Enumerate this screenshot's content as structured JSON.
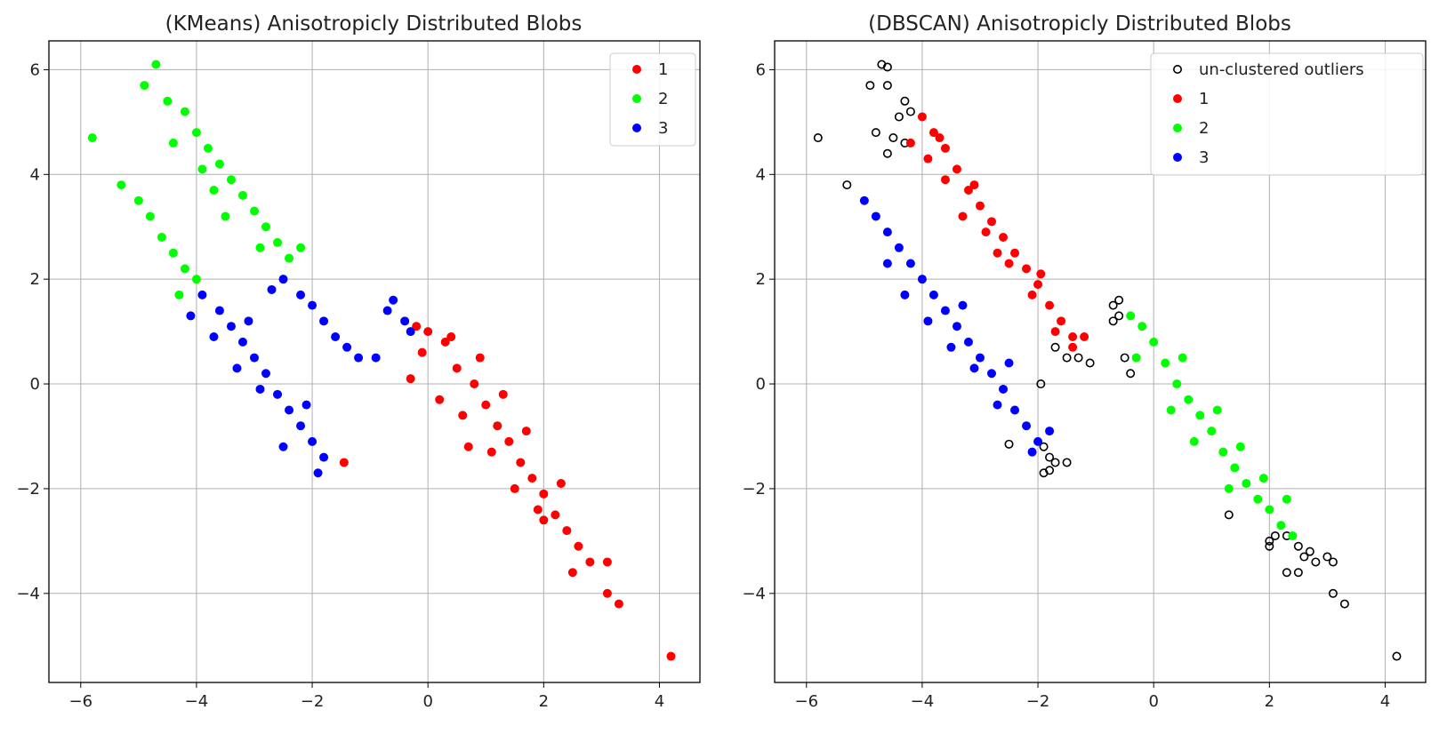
{
  "chart_data": [
    {
      "type": "scatter",
      "title": "(KMeans) Anisotropicly Distributed Blobs",
      "xlabel": "",
      "ylabel": "",
      "xlim": [
        -6.55,
        4.7
      ],
      "ylim": [
        -5.7,
        6.55
      ],
      "xticks": [
        -6,
        -4,
        -2,
        0,
        2,
        4
      ],
      "yticks": [
        -4,
        -2,
        0,
        2,
        4,
        6
      ],
      "grid": true,
      "legend_position": "top-right",
      "series": [
        {
          "name": "1",
          "color": "#ff0000",
          "marker": "filled",
          "points": [
            [
              0,
              1
            ],
            [
              -0.2,
              1.1
            ],
            [
              0.3,
              0.8
            ],
            [
              0.5,
              0.3
            ],
            [
              0.8,
              0
            ],
            [
              1,
              -0.4
            ],
            [
              1.2,
              -0.8
            ],
            [
              1.4,
              -1.1
            ],
            [
              1.6,
              -1.5
            ],
            [
              1.8,
              -1.8
            ],
            [
              2,
              -2.1
            ],
            [
              2.2,
              -2.5
            ],
            [
              2.4,
              -2.8
            ],
            [
              2.6,
              -3.1
            ],
            [
              2.8,
              -3.4
            ],
            [
              3.1,
              -3.4
            ],
            [
              3.1,
              -4
            ],
            [
              3.3,
              -4.2
            ],
            [
              4.2,
              -5.2
            ],
            [
              -0.3,
              0.1
            ],
            [
              0.2,
              -0.3
            ],
            [
              0.6,
              -0.6
            ],
            [
              1.1,
              -1.3
            ],
            [
              1.5,
              -2
            ],
            [
              2,
              -2.6
            ],
            [
              2.5,
              -3.6
            ],
            [
              -1.45,
              -1.5
            ],
            [
              0.4,
              0.9
            ],
            [
              0.9,
              0.5
            ],
            [
              1.3,
              -0.2
            ],
            [
              1.7,
              -0.9
            ],
            [
              2.3,
              -1.9
            ],
            [
              -0.1,
              0.6
            ],
            [
              0.7,
              -1.2
            ],
            [
              1.9,
              -2.4
            ]
          ]
        },
        {
          "name": "2",
          "color": "#00ff00",
          "marker": "filled",
          "points": [
            [
              -4.7,
              6.1
            ],
            [
              -4.9,
              5.7
            ],
            [
              -4.5,
              5.4
            ],
            [
              -4.2,
              5.2
            ],
            [
              -4,
              4.8
            ],
            [
              -3.8,
              4.5
            ],
            [
              -3.6,
              4.2
            ],
            [
              -3.4,
              3.9
            ],
            [
              -3.2,
              3.6
            ],
            [
              -3,
              3.3
            ],
            [
              -2.8,
              3
            ],
            [
              -2.6,
              2.7
            ],
            [
              -2.4,
              2.4
            ],
            [
              -2.2,
              2.6
            ],
            [
              -5.8,
              4.7
            ],
            [
              -5.3,
              3.8
            ],
            [
              -5,
              3.5
            ],
            [
              -4.8,
              3.2
            ],
            [
              -4.6,
              2.8
            ],
            [
              -4.4,
              2.5
            ],
            [
              -4.2,
              2.2
            ],
            [
              -4,
              2
            ],
            [
              -4.3,
              1.7
            ],
            [
              -3.7,
              3.7
            ],
            [
              -3.9,
              4.1
            ],
            [
              -2.9,
              2.6
            ],
            [
              -4.4,
              4.6
            ],
            [
              -3.5,
              3.2
            ]
          ]
        },
        {
          "name": "3",
          "color": "#0000ff",
          "marker": "filled",
          "points": [
            [
              -3.9,
              1.7
            ],
            [
              -3.6,
              1.4
            ],
            [
              -3.4,
              1.1
            ],
            [
              -3.2,
              0.8
            ],
            [
              -3,
              0.5
            ],
            [
              -2.8,
              0.2
            ],
            [
              -2.6,
              -0.2
            ],
            [
              -2.4,
              -0.5
            ],
            [
              -2.2,
              -0.8
            ],
            [
              -2,
              -1.1
            ],
            [
              -1.8,
              -1.4
            ],
            [
              -1.9,
              -1.7
            ],
            [
              -2.5,
              -1.2
            ],
            [
              -4.1,
              1.3
            ],
            [
              -3.7,
              0.9
            ],
            [
              -3.3,
              0.3
            ],
            [
              -2.9,
              -0.1
            ],
            [
              -2.5,
              2
            ],
            [
              -2.2,
              1.7
            ],
            [
              -2,
              1.5
            ],
            [
              -1.8,
              1.2
            ],
            [
              -1.6,
              0.9
            ],
            [
              -1.4,
              0.7
            ],
            [
              -1.2,
              0.5
            ],
            [
              -0.9,
              0.5
            ],
            [
              -0.7,
              1.4
            ],
            [
              -0.6,
              1.6
            ],
            [
              -0.4,
              1.2
            ],
            [
              -0.3,
              1
            ],
            [
              -2.7,
              1.8
            ],
            [
              -3.1,
              1.2
            ],
            [
              -2.1,
              -0.4
            ]
          ]
        }
      ]
    },
    {
      "type": "scatter",
      "title": "(DBSCAN) Anisotropicly Distributed Blobs",
      "xlabel": "",
      "ylabel": "",
      "xlim": [
        -6.55,
        4.7
      ],
      "ylim": [
        -5.7,
        6.55
      ],
      "xticks": [
        -6,
        -4,
        -2,
        0,
        2,
        4
      ],
      "yticks": [
        -4,
        -2,
        0,
        2,
        4,
        6
      ],
      "grid": true,
      "legend_position": "top-right",
      "series": [
        {
          "name": "un-clustered outliers",
          "color": "#000000",
          "marker": "hollow",
          "points": [
            [
              -4.7,
              6.1
            ],
            [
              -4.6,
              6.05
            ],
            [
              -4.9,
              5.7
            ],
            [
              -4.6,
              5.7
            ],
            [
              -4.3,
              5.4
            ],
            [
              -4.2,
              5.2
            ],
            [
              -4.4,
              5.1
            ],
            [
              -4.5,
              4.7
            ],
            [
              -4.3,
              4.6
            ],
            [
              -4.6,
              4.4
            ],
            [
              -4.8,
              4.8
            ],
            [
              -5.8,
              4.7
            ],
            [
              -5.3,
              3.8
            ],
            [
              -1.5,
              0.5
            ],
            [
              -1.3,
              0.5
            ],
            [
              -1.1,
              0.4
            ],
            [
              -1.7,
              0.7
            ],
            [
              -1.95,
              0
            ],
            [
              -0.6,
              1.6
            ],
            [
              -0.6,
              1.3
            ],
            [
              -0.5,
              0.5
            ],
            [
              -0.4,
              0.2
            ],
            [
              -0.7,
              1.2
            ],
            [
              -0.7,
              1.5
            ],
            [
              -1.9,
              -1.2
            ],
            [
              -1.8,
              -1.4
            ],
            [
              -1.7,
              -1.5
            ],
            [
              -1.5,
              -1.5
            ],
            [
              -1.9,
              -1.7
            ],
            [
              -1.8,
              -1.65
            ],
            [
              -2.5,
              -1.15
            ],
            [
              1.3,
              -2.5
            ],
            [
              2,
              -3
            ],
            [
              2.1,
              -2.9
            ],
            [
              2.3,
              -2.9
            ],
            [
              2.5,
              -3.1
            ],
            [
              2.6,
              -3.3
            ],
            [
              2.7,
              -3.2
            ],
            [
              2.8,
              -3.4
            ],
            [
              2.5,
              -3.6
            ],
            [
              2.3,
              -3.6
            ],
            [
              2,
              -3.1
            ],
            [
              3.1,
              -3.4
            ],
            [
              3,
              -3.3
            ],
            [
              3.1,
              -4
            ],
            [
              3.3,
              -4.2
            ],
            [
              4.2,
              -5.2
            ]
          ]
        },
        {
          "name": "1",
          "color": "#ff0000",
          "marker": "filled",
          "points": [
            [
              -4,
              5.1
            ],
            [
              -3.8,
              4.8
            ],
            [
              -3.6,
              4.5
            ],
            [
              -3.4,
              4.1
            ],
            [
              -3.2,
              3.7
            ],
            [
              -3,
              3.4
            ],
            [
              -2.8,
              3.1
            ],
            [
              -2.6,
              2.8
            ],
            [
              -2.4,
              2.5
            ],
            [
              -2.2,
              2.2
            ],
            [
              -2,
              1.9
            ],
            [
              -1.8,
              1.5
            ],
            [
              -1.6,
              1.2
            ],
            [
              -1.4,
              0.9
            ],
            [
              -1.2,
              0.9
            ],
            [
              -1.4,
              0.7
            ],
            [
              -4.2,
              4.6
            ],
            [
              -3.9,
              4.3
            ],
            [
              -3.6,
              3.9
            ],
            [
              -3.3,
              3.2
            ],
            [
              -2.9,
              2.9
            ],
            [
              -2.5,
              2.3
            ],
            [
              -2.1,
              1.7
            ],
            [
              -1.7,
              1.0
            ],
            [
              -3.7,
              4.7
            ],
            [
              -3.1,
              3.8
            ],
            [
              -2.7,
              2.5
            ],
            [
              -1.95,
              2.1
            ]
          ]
        },
        {
          "name": "2",
          "color": "#00ff00",
          "marker": "filled",
          "points": [
            [
              -0.4,
              1.3
            ],
            [
              -0.2,
              1.1
            ],
            [
              0,
              0.8
            ],
            [
              0.2,
              0.4
            ],
            [
              0.4,
              0
            ],
            [
              0.6,
              -0.3
            ],
            [
              0.8,
              -0.6
            ],
            [
              1,
              -0.9
            ],
            [
              1.2,
              -1.3
            ],
            [
              1.4,
              -1.6
            ],
            [
              1.6,
              -1.9
            ],
            [
              1.8,
              -2.2
            ],
            [
              2,
              -2.4
            ],
            [
              2.2,
              -2.7
            ],
            [
              2.4,
              -2.9
            ],
            [
              -0.3,
              0.5
            ],
            [
              0.3,
              -0.5
            ],
            [
              0.7,
              -1.1
            ],
            [
              1.3,
              -2
            ],
            [
              1.9,
              -1.8
            ],
            [
              1.1,
              -0.5
            ],
            [
              0.5,
              0.5
            ],
            [
              1.5,
              -1.2
            ],
            [
              2.3,
              -2.2
            ]
          ]
        },
        {
          "name": "3",
          "color": "#0000ff",
          "marker": "filled",
          "points": [
            [
              -5,
              3.5
            ],
            [
              -4.8,
              3.2
            ],
            [
              -4.6,
              2.9
            ],
            [
              -4.4,
              2.6
            ],
            [
              -4.2,
              2.3
            ],
            [
              -4,
              2
            ],
            [
              -3.8,
              1.7
            ],
            [
              -3.6,
              1.4
            ],
            [
              -3.4,
              1.1
            ],
            [
              -3.2,
              0.8
            ],
            [
              -3,
              0.5
            ],
            [
              -2.8,
              0.2
            ],
            [
              -2.6,
              -0.1
            ],
            [
              -2.4,
              -0.5
            ],
            [
              -2.2,
              -0.8
            ],
            [
              -2,
              -1.1
            ],
            [
              -1.8,
              -0.9
            ],
            [
              -2.1,
              -1.3
            ],
            [
              -4.3,
              1.7
            ],
            [
              -3.9,
              1.2
            ],
            [
              -3.5,
              0.7
            ],
            [
              -3.1,
              0.3
            ],
            [
              -2.7,
              -0.4
            ],
            [
              -4.6,
              2.3
            ],
            [
              -3.3,
              1.5
            ],
            [
              -2.5,
              0.4
            ]
          ]
        }
      ]
    }
  ]
}
